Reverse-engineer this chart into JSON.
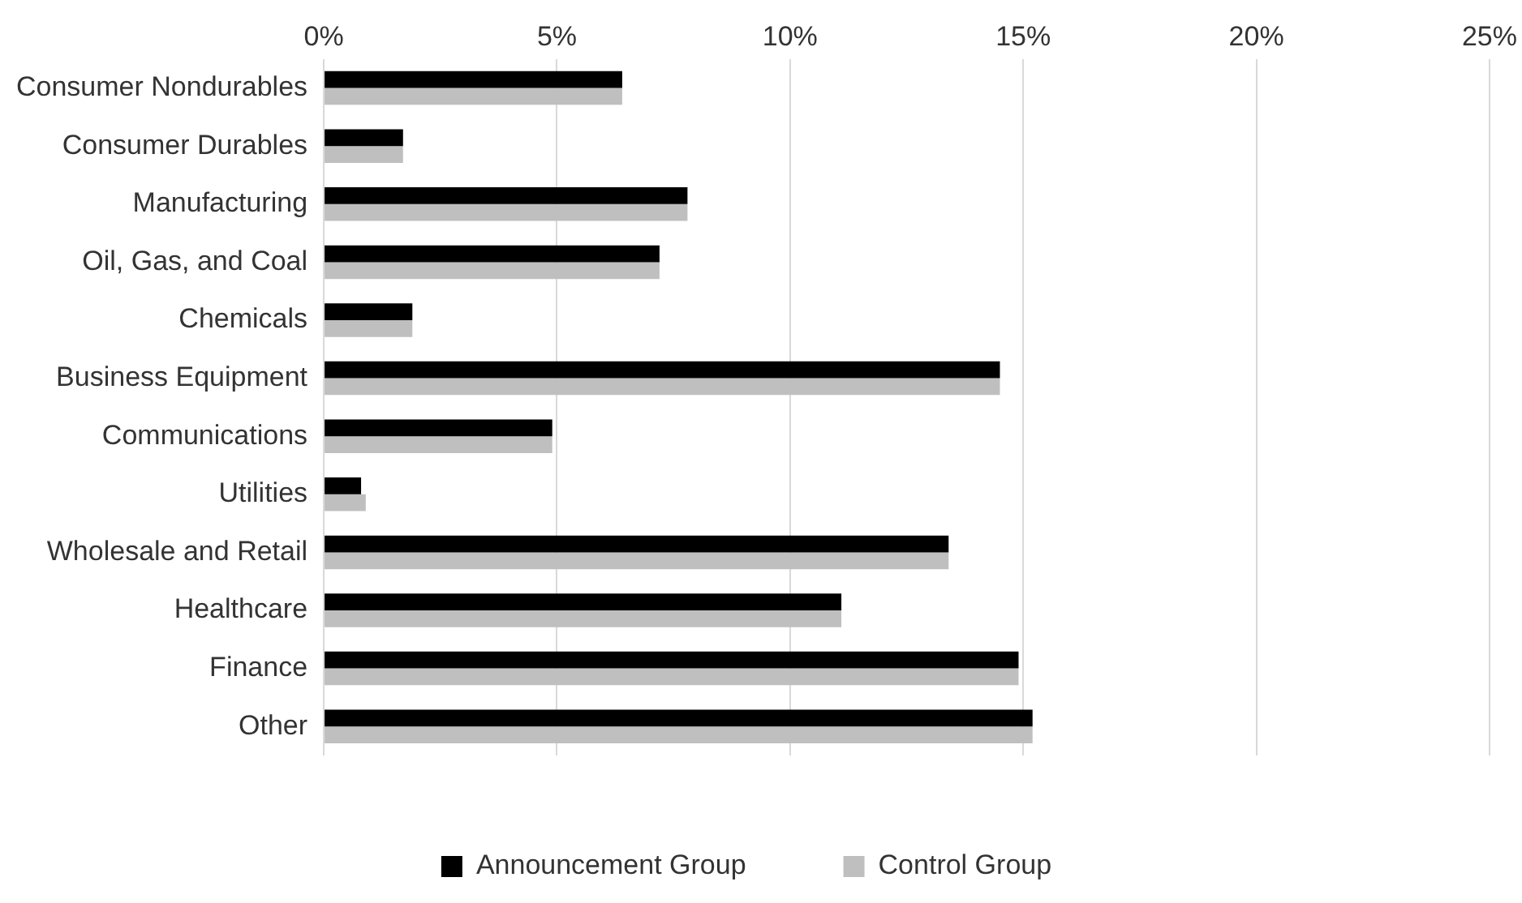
{
  "chart_data": {
    "type": "bar",
    "orientation": "horizontal",
    "categories": [
      "Consumer Nondurables",
      "Consumer Durables",
      "Manufacturing",
      "Oil, Gas, and Coal",
      "Chemicals",
      "Business Equipment",
      "Communications",
      "Utilities",
      "Wholesale and Retail",
      "Healthcare",
      "Finance",
      "Other"
    ],
    "series": [
      {
        "name": "Announcement Group",
        "color": "#000000",
        "values": [
          6.4,
          1.7,
          7.8,
          7.2,
          1.9,
          14.5,
          4.9,
          0.8,
          13.4,
          11.1,
          14.9,
          15.2
        ]
      },
      {
        "name": "Control Group",
        "color": "#bfbfbf",
        "values": [
          6.4,
          1.7,
          7.8,
          7.2,
          1.9,
          14.5,
          4.9,
          0.9,
          13.4,
          11.1,
          14.9,
          15.2
        ]
      }
    ],
    "xlim": [
      0,
      25
    ],
    "xticks": [
      {
        "value": 0,
        "label": "0%"
      },
      {
        "value": 5,
        "label": "5%"
      },
      {
        "value": 10,
        "label": "10%"
      },
      {
        "value": 15,
        "label": "15%"
      },
      {
        "value": 20,
        "label": "20%"
      },
      {
        "value": 25,
        "label": "25%"
      }
    ],
    "grid": "x",
    "legend": "bottom"
  }
}
